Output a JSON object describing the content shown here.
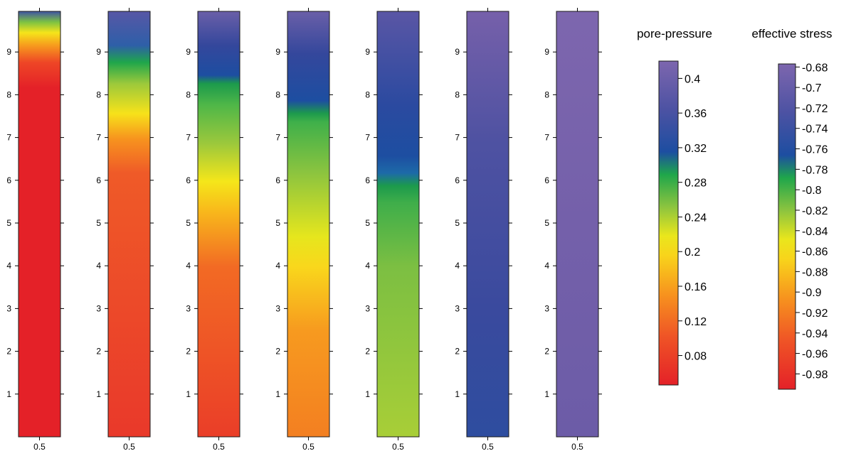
{
  "chart_data": [
    {
      "type": "heatmap",
      "subtype": "column-profiles",
      "columns": [
        {
          "index": 1,
          "x_tick": "0.5",
          "gradient": [
            [
              0,
              "#e42128"
            ],
            [
              0.82,
              "#e42128"
            ],
            [
              0.88,
              "#ee4626"
            ],
            [
              0.92,
              "#f79b1d"
            ],
            [
              0.95,
              "#f5e41a"
            ],
            [
              0.975,
              "#7cc242"
            ],
            [
              1,
              "#3f54a3"
            ]
          ]
        },
        {
          "index": 2,
          "x_tick": "0.5",
          "gradient": [
            [
              0,
              "#e9392a"
            ],
            [
              0.62,
              "#ef5a28"
            ],
            [
              0.7,
              "#f7931e"
            ],
            [
              0.76,
              "#f7e21a"
            ],
            [
              0.83,
              "#9cc93b"
            ],
            [
              0.88,
              "#1fa64b"
            ],
            [
              0.92,
              "#2e5fa8"
            ],
            [
              1,
              "#5757a6"
            ]
          ]
        },
        {
          "index": 3,
          "x_tick": "0.5",
          "gradient": [
            [
              0,
              "#ea3e28"
            ],
            [
              0.4,
              "#f26a24"
            ],
            [
              0.53,
              "#f8b81b"
            ],
            [
              0.6,
              "#f5e61a"
            ],
            [
              0.69,
              "#9bc83c"
            ],
            [
              0.78,
              "#4fb748"
            ],
            [
              0.83,
              "#1c9a4c"
            ],
            [
              0.85,
              "#1d4ea1"
            ],
            [
              0.92,
              "#34479c"
            ],
            [
              1,
              "#6a5fa8"
            ]
          ]
        },
        {
          "index": 4,
          "x_tick": "0.5",
          "gradient": [
            [
              0,
              "#f37f21"
            ],
            [
              0.25,
              "#f79a1f"
            ],
            [
              0.4,
              "#f9d71c"
            ],
            [
              0.47,
              "#e6e61d"
            ],
            [
              0.62,
              "#8cc43f"
            ],
            [
              0.74,
              "#3fb04a"
            ],
            [
              0.76,
              "#1d9a4c"
            ],
            [
              0.79,
              "#1d4ea1"
            ],
            [
              0.9,
              "#34479c"
            ],
            [
              1,
              "#6a5fa8"
            ]
          ]
        },
        {
          "index": 5,
          "x_tick": "0.5",
          "gradient": [
            [
              0,
              "#a8ce37"
            ],
            [
              0.4,
              "#7cbf42"
            ],
            [
              0.55,
              "#3fae4a"
            ],
            [
              0.59,
              "#1c9a4c"
            ],
            [
              0.62,
              "#1d6aa8"
            ],
            [
              0.66,
              "#1d4ea1"
            ],
            [
              0.78,
              "#2b4aa0"
            ],
            [
              1,
              "#5a56a5"
            ]
          ]
        },
        {
          "index": 6,
          "x_tick": "0.5",
          "gradient": [
            [
              0,
              "#2e4d9f"
            ],
            [
              0.3,
              "#3a4a9e"
            ],
            [
              0.7,
              "#4f52a2"
            ],
            [
              1,
              "#7660aa"
            ]
          ]
        },
        {
          "index": 7,
          "x_tick": "0.5",
          "gradient": [
            [
              0,
              "#6c5ca7"
            ],
            [
              0.5,
              "#7460aa"
            ],
            [
              1,
              "#7d66ae"
            ]
          ]
        }
      ],
      "y_axis": {
        "ticks": [
          "1",
          "2",
          "3",
          "4",
          "5",
          "6",
          "7",
          "8",
          "9"
        ],
        "range": [
          0,
          9.95
        ]
      },
      "x_axis": {
        "ticks": [
          "0.5"
        ]
      }
    },
    {
      "type": "colorbar",
      "title": "pore-pressure",
      "ticks": [
        "0.4",
        "0.36",
        "0.32",
        "0.28",
        "0.24",
        "0.2",
        "0.16",
        "0.12",
        "0.08"
      ],
      "tick_values": [
        0.4,
        0.36,
        0.32,
        0.28,
        0.24,
        0.2,
        0.16,
        0.12,
        0.08
      ],
      "range": [
        0.046,
        0.42
      ],
      "gradient": [
        [
          0,
          "#e42128"
        ],
        [
          0.15,
          "#ef5426"
        ],
        [
          0.28,
          "#f7931e"
        ],
        [
          0.4,
          "#f8d41b"
        ],
        [
          0.46,
          "#eae61c"
        ],
        [
          0.55,
          "#8cc43f"
        ],
        [
          0.65,
          "#1fa64b"
        ],
        [
          0.72,
          "#1d4ea1"
        ],
        [
          0.85,
          "#4c52a3"
        ],
        [
          1,
          "#7d66ae"
        ]
      ]
    },
    {
      "type": "colorbar",
      "title": "effective stress",
      "ticks": [
        "-0.68",
        "-0.7",
        "-0.72",
        "-0.74",
        "-0.76",
        "-0.78",
        "-0.8",
        "-0.82",
        "-0.84",
        "-0.86",
        "-0.88",
        "-0.9",
        "-0.92",
        "-0.94",
        "-0.96",
        "-0.98"
      ],
      "tick_values": [
        -0.68,
        -0.7,
        -0.72,
        -0.74,
        -0.76,
        -0.78,
        -0.8,
        -0.82,
        -0.84,
        -0.86,
        -0.88,
        -0.9,
        -0.92,
        -0.94,
        -0.96,
        -0.98
      ],
      "range": [
        -0.995,
        -0.677
      ],
      "gradient": [
        [
          0,
          "#e42128"
        ],
        [
          0.15,
          "#ef5426"
        ],
        [
          0.28,
          "#f7931e"
        ],
        [
          0.4,
          "#f8d41b"
        ],
        [
          0.46,
          "#eae61c"
        ],
        [
          0.55,
          "#8cc43f"
        ],
        [
          0.65,
          "#1fa64b"
        ],
        [
          0.72,
          "#1d4ea1"
        ],
        [
          0.85,
          "#4c52a3"
        ],
        [
          1,
          "#7d66ae"
        ]
      ]
    }
  ]
}
